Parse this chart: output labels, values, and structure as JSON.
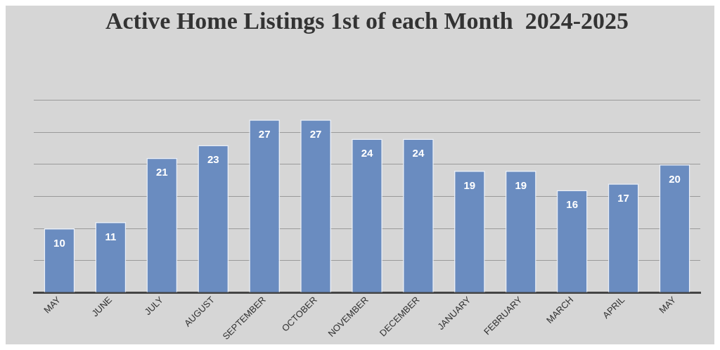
{
  "chart_data": {
    "type": "bar",
    "title": "Active Home Listings 1st of each Month  2024-2025",
    "categories": [
      "MAY",
      "JUNE",
      "JULY",
      "AUGUST",
      "SEPTEMBER",
      "OCTOBER",
      "NOVEMBER",
      "DECEMBER",
      "JANUARY",
      "FEBRUARY",
      "MARCH",
      "APRIL",
      "MAY"
    ],
    "values": [
      10,
      11,
      21,
      23,
      27,
      27,
      24,
      24,
      19,
      19,
      16,
      17,
      20
    ],
    "color": "#6a8cc0",
    "ylim": [
      0,
      30
    ],
    "yticks": [
      {
        "value": 0,
        "label": null
      },
      {
        "value": 5,
        "label": null
      },
      {
        "value": 10,
        "label": null
      },
      {
        "value": 15,
        "label": null
      },
      {
        "value": 20,
        "label": null
      },
      {
        "value": 25,
        "label": null
      },
      {
        "value": 30,
        "label": null
      }
    ],
    "tick_labels": "x",
    "grid": "y",
    "data_labels": true,
    "legend": false
  }
}
